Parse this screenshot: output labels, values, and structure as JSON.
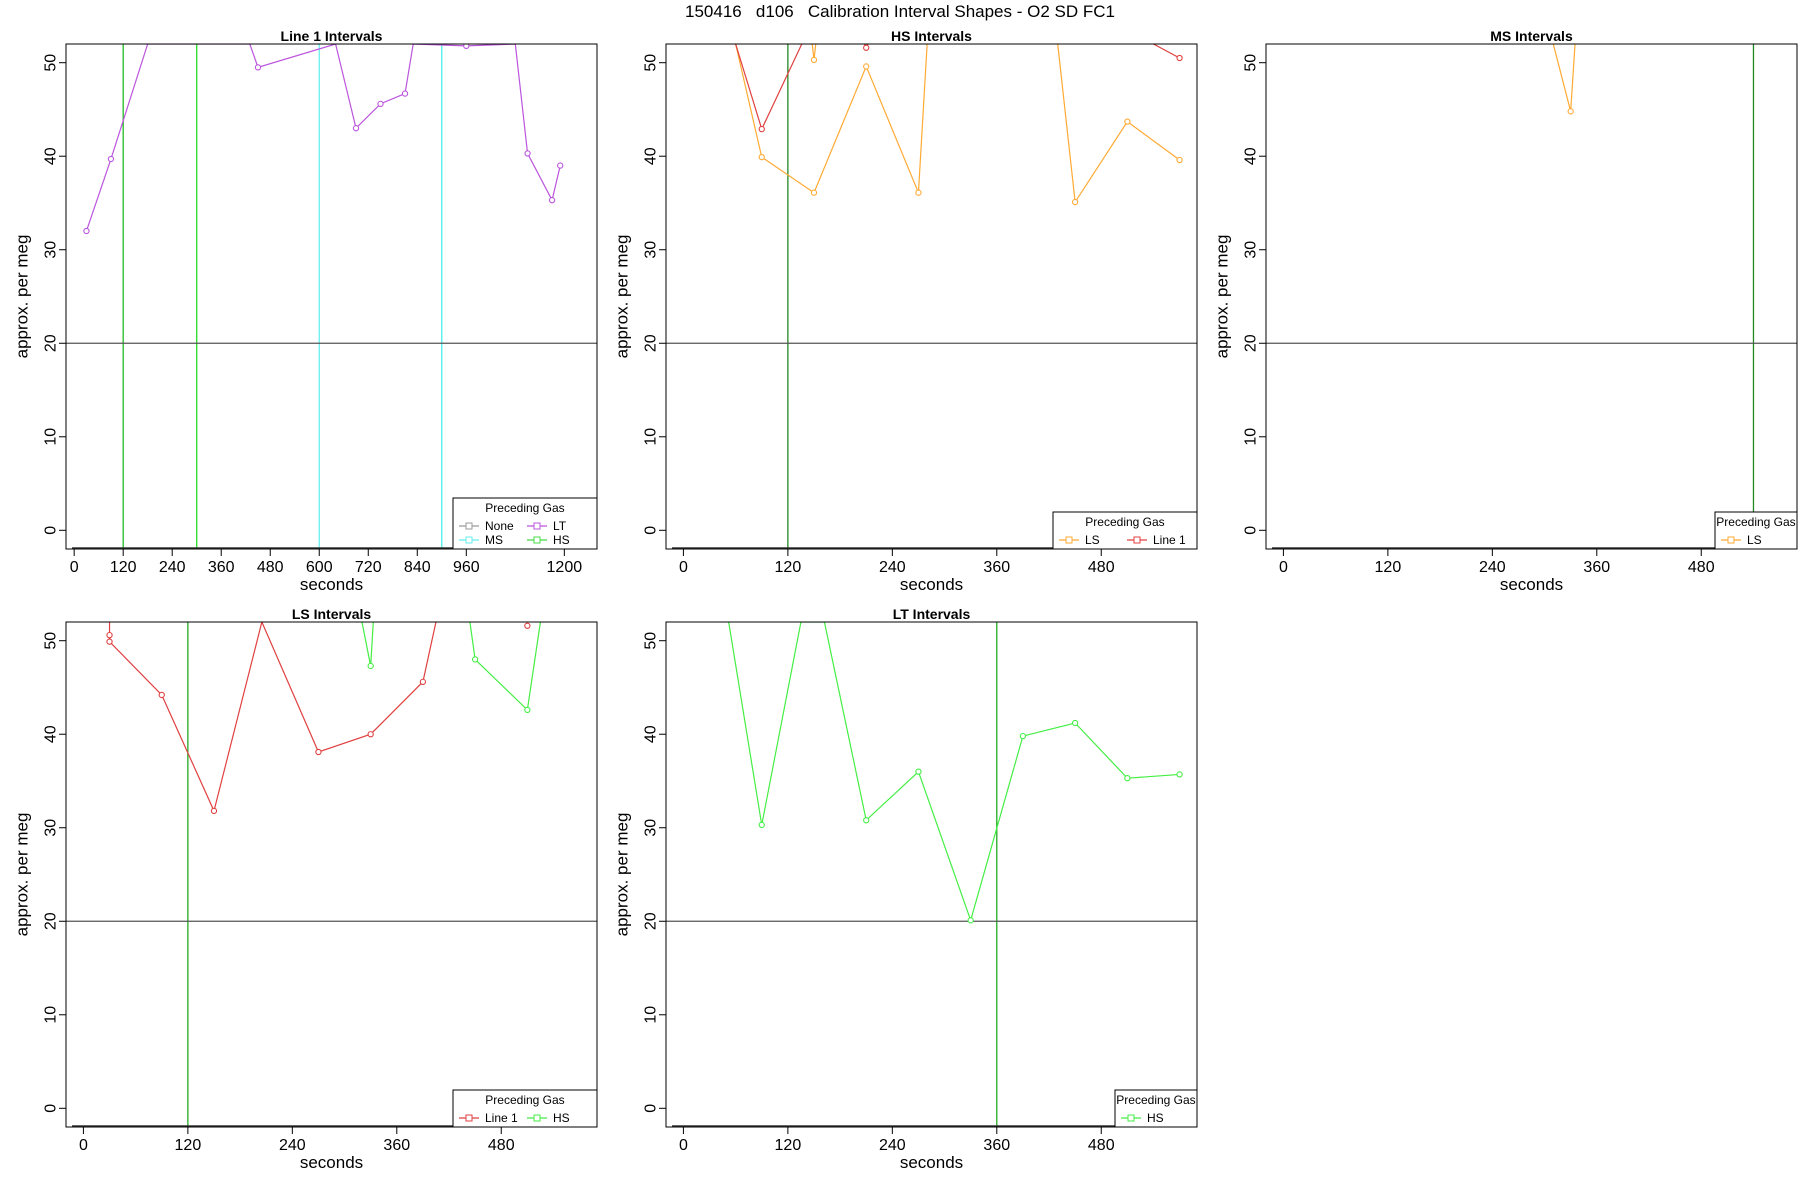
{
  "page_title": "150416   d106   Calibration Interval Shapes - O2 SD FC1",
  "chart_data": [
    {
      "type": "line",
      "title": "Line 1 Intervals",
      "xlabel": "seconds",
      "ylabel": "approx. per meg",
      "xlim": [
        -20,
        1280
      ],
      "ylim": [
        -2,
        52
      ],
      "xticks": [
        0,
        120,
        240,
        360,
        480,
        600,
        720,
        840,
        960,
        1200
      ],
      "yticks": [
        0,
        10,
        20,
        30,
        40,
        50
      ],
      "hline": 20,
      "vlines": [
        {
          "x": 120,
          "color": "#22bb22"
        },
        {
          "x": 300,
          "color": "#22dd22"
        },
        {
          "x": 600,
          "color": "#66eeee"
        },
        {
          "x": 900,
          "color": "#44eeee"
        }
      ],
      "legend": {
        "title": "Preceding Gas",
        "position": "bottom-right",
        "columns": 2,
        "entries": [
          {
            "name": "None",
            "color": "#9a9a9a"
          },
          {
            "name": "LT",
            "color": "#bb55dd"
          },
          {
            "name": "MS",
            "color": "#66eeee"
          },
          {
            "name": "HS",
            "color": "#44dd44"
          }
        ]
      },
      "series": [
        {
          "name": "LT",
          "color": "#bb55dd",
          "x": [
            30,
            90,
            180,
            430,
            450,
            640,
            690,
            750,
            810,
            830,
            960,
            1080,
            1110,
            1170,
            1190
          ],
          "y": [
            32,
            39.7,
            52,
            52,
            49.5,
            52,
            43,
            45.6,
            46.7,
            52,
            51.8,
            52,
            40.3,
            35.3,
            39
          ]
        }
      ]
    },
    {
      "type": "line",
      "title": "HS Intervals",
      "xlabel": "seconds",
      "ylabel": "approx. per meg",
      "xlim": [
        -20,
        590
      ],
      "ylim": [
        -2,
        52
      ],
      "xticks": [
        0,
        120,
        240,
        360,
        480
      ],
      "yticks": [
        0,
        10,
        20,
        30,
        40,
        50
      ],
      "hline": 20,
      "vlines": [
        {
          "x": 120,
          "color": "#228822"
        }
      ],
      "legend": {
        "title": "Preceding Gas",
        "position": "bottom-right",
        "columns": 2,
        "entries": [
          {
            "name": "LS",
            "color": "#ffaa33"
          },
          {
            "name": "Line 1",
            "color": "#e04040"
          }
        ]
      },
      "series": [
        {
          "name": "LS",
          "color": "#ffaa33",
          "x": [
            60,
            90,
            150,
            210,
            270,
            280
          ],
          "y": [
            52,
            39.9,
            36.1,
            49.6,
            36.1,
            52
          ]
        },
        {
          "name": "LS",
          "color": "#ffaa33",
          "x": [
            148,
            150,
            152
          ],
          "y": [
            52,
            50.3,
            52
          ]
        },
        {
          "name": "LS",
          "color": "#ffaa33",
          "x": [
            430,
            450,
            510,
            570
          ],
          "y": [
            52,
            35.1,
            43.7,
            39.6
          ]
        },
        {
          "name": "Line 1",
          "color": "#e04040",
          "x": [
            60,
            90,
            136
          ],
          "y": [
            52,
            42.9,
            52
          ]
        },
        {
          "name": "Line 1",
          "color": "#e04040",
          "x": [
            208,
            210,
            212
          ],
          "y": [
            52,
            51.6,
            52
          ]
        },
        {
          "name": "Line 1",
          "color": "#e04040",
          "x": [
            540,
            570
          ],
          "y": [
            52,
            50.5
          ]
        }
      ]
    },
    {
      "type": "line",
      "title": "MS Intervals",
      "xlabel": "seconds",
      "ylabel": "approx. per meg",
      "xlim": [
        -20,
        590
      ],
      "ylim": [
        -2,
        52
      ],
      "xticks": [
        0,
        120,
        240,
        360,
        480
      ],
      "yticks": [
        0,
        10,
        20,
        30,
        40,
        50
      ],
      "hline": 20,
      "vlines": [
        {
          "x": 540,
          "color": "#228822"
        }
      ],
      "legend": {
        "title": "Preceding Gas",
        "position": "bottom-right",
        "columns": 1,
        "entries": [
          {
            "name": "LS",
            "color": "#ffaa33"
          }
        ]
      },
      "series": [
        {
          "name": "LS",
          "color": "#ffaa33",
          "x": [
            310,
            330,
            335
          ],
          "y": [
            52,
            44.8,
            52
          ]
        }
      ]
    },
    {
      "type": "line",
      "title": "LS Intervals",
      "xlabel": "seconds",
      "ylabel": "approx. per meg",
      "xlim": [
        -20,
        590
      ],
      "ylim": [
        -2,
        52
      ],
      "xticks": [
        0,
        120,
        240,
        360,
        480
      ],
      "yticks": [
        0,
        10,
        20,
        30,
        40,
        50
      ],
      "hline": 20,
      "vlines": [
        {
          "x": 120,
          "color": "#22aa22"
        }
      ],
      "legend": {
        "title": "Preceding Gas",
        "position": "bottom-right",
        "columns": 2,
        "entries": [
          {
            "name": "Line 1",
            "color": "#e04040"
          },
          {
            "name": "HS",
            "color": "#44ee44"
          }
        ]
      },
      "series": [
        {
          "name": "Line 1",
          "color": "#e04040",
          "x": [
            30,
            30,
            90,
            150,
            205,
            270,
            330,
            390,
            405
          ],
          "y": [
            52,
            49.9,
            44.2,
            31.8,
            52,
            38.1,
            40,
            45.6,
            52
          ]
        },
        {
          "name": "Line 1",
          "color": "#e04040",
          "x": [
            30
          ],
          "y": [
            50.6
          ]
        },
        {
          "name": "Line 1",
          "color": "#e04040",
          "x": [
            510
          ],
          "y": [
            51.6
          ]
        },
        {
          "name": "HS",
          "color": "#44ee44",
          "x": [
            320,
            330,
            333
          ],
          "y": [
            52,
            47.3,
            52
          ]
        },
        {
          "name": "HS",
          "color": "#44ee44",
          "x": [
            444,
            450,
            510,
            525
          ],
          "y": [
            52,
            48,
            42.6,
            52
          ]
        }
      ]
    },
    {
      "type": "line",
      "title": "LT Intervals",
      "xlabel": "seconds",
      "ylabel": "approx. per meg",
      "xlim": [
        -20,
        590
      ],
      "ylim": [
        -2,
        52
      ],
      "xticks": [
        0,
        120,
        240,
        360,
        480
      ],
      "yticks": [
        0,
        10,
        20,
        30,
        40,
        50
      ],
      "hline": 20,
      "vlines": [
        {
          "x": 360,
          "color": "#22aa22"
        }
      ],
      "legend": {
        "title": "Preceding Gas",
        "position": "bottom-right",
        "columns": 1,
        "entries": [
          {
            "name": "HS",
            "color": "#44ee44"
          }
        ]
      },
      "series": [
        {
          "name": "HS",
          "color": "#44ee44",
          "x": [
            52,
            90,
            135,
            162,
            210,
            270,
            330,
            390,
            450,
            510,
            570
          ],
          "y": [
            52,
            30.3,
            52,
            52,
            30.8,
            36,
            20.1,
            39.8,
            41.2,
            35.3,
            35.7
          ]
        }
      ]
    }
  ]
}
